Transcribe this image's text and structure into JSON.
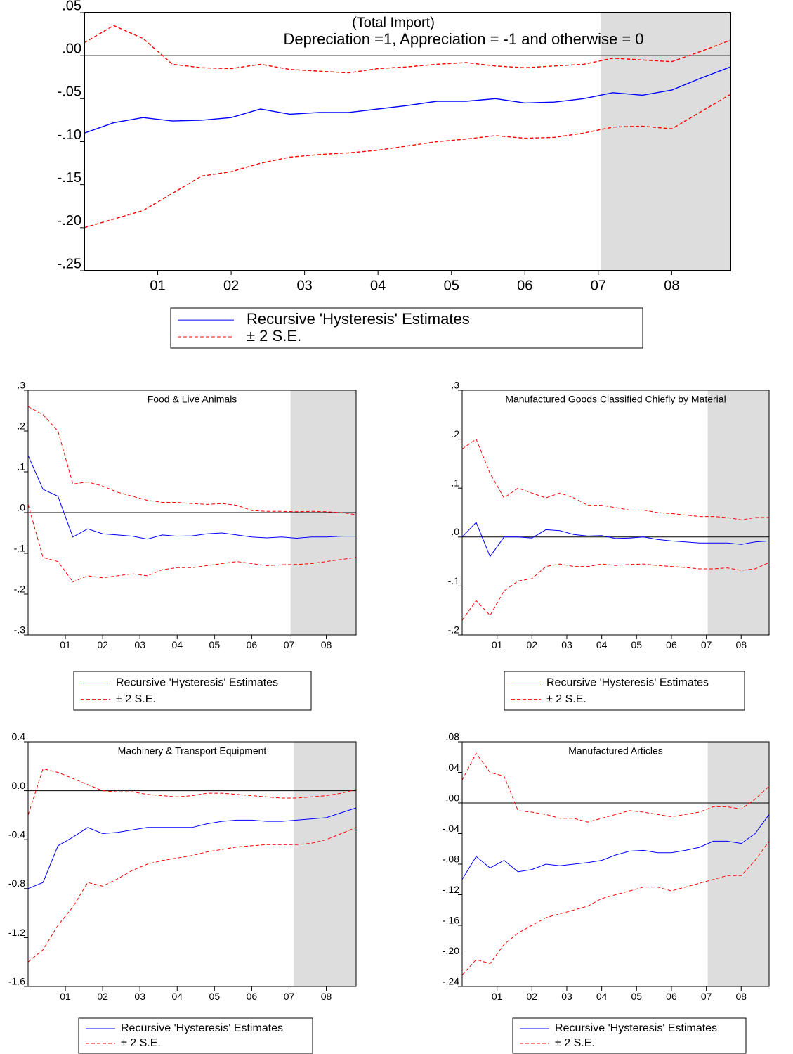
{
  "chart_data": [
    {
      "type": "line",
      "title": "(Total Import)",
      "subtitle": "Depreciation =1, Appreciation = -1 and otherwise = 0",
      "x": [
        2000.5,
        2000.9,
        2001.3,
        2001.7,
        2002.1,
        2002.5,
        2002.9,
        2003.3,
        2003.7,
        2004.1,
        2004.5,
        2004.9,
        2005.3,
        2005.7,
        2006.1,
        2006.5,
        2006.9,
        2007.3,
        2007.7,
        2008.1,
        2008.5,
        2008.9,
        2009.3
      ],
      "xlim": [
        2000.5,
        2009.3
      ],
      "xticks": [
        {
          "value": 2001.5,
          "label": "01"
        },
        {
          "value": 2002.5,
          "label": "02"
        },
        {
          "value": 2003.5,
          "label": "03"
        },
        {
          "value": 2004.5,
          "label": "04"
        },
        {
          "value": 2005.5,
          "label": "05"
        },
        {
          "value": 2006.5,
          "label": "06"
        },
        {
          "value": 2007.5,
          "label": "07"
        },
        {
          "value": 2008.5,
          "label": "08"
        }
      ],
      "ylim": [
        -0.25,
        0.05
      ],
      "yticks": [
        {
          "value": 0.05,
          "label": ".05"
        },
        {
          "value": 0,
          "label": ".00"
        },
        {
          "value": -0.05,
          "label": "-.05"
        },
        {
          "value": -0.1,
          "label": "-.10"
        },
        {
          "value": -0.15,
          "label": "-.15"
        },
        {
          "value": -0.2,
          "label": "-.20"
        },
        {
          "value": -0.25,
          "label": "-.25"
        }
      ],
      "shaded_region": [
        2007.53,
        2009.3
      ],
      "series": [
        {
          "name": "Recursive 'Hysteresis' Estimates",
          "color": "#0000ff",
          "values": [
            -0.09,
            -0.078,
            -0.072,
            -0.076,
            -0.075,
            -0.072,
            -0.062,
            -0.068,
            -0.066,
            -0.066,
            -0.062,
            -0.058,
            -0.053,
            -0.053,
            -0.05,
            -0.055,
            -0.054,
            -0.05,
            -0.043,
            -0.046,
            -0.04,
            -0.026,
            -0.013
          ]
        },
        {
          "name": "± 2 S.E.",
          "color": "#ff0000",
          "upper": [
            0.015,
            0.035,
            0.02,
            -0.01,
            -0.014,
            -0.015,
            -0.01,
            -0.016,
            -0.018,
            -0.02,
            -0.015,
            -0.013,
            -0.01,
            -0.008,
            -0.012,
            -0.014,
            -0.012,
            -0.01,
            -0.003,
            -0.005,
            -0.007,
            0.005,
            0.018
          ],
          "lower": [
            -0.2,
            -0.19,
            -0.18,
            -0.16,
            -0.14,
            -0.135,
            -0.125,
            -0.118,
            -0.115,
            -0.113,
            -0.11,
            -0.105,
            -0.1,
            -0.097,
            -0.093,
            -0.096,
            -0.095,
            -0.09,
            -0.083,
            -0.082,
            -0.085,
            -0.065,
            -0.045
          ]
        }
      ]
    },
    {
      "type": "line",
      "title": "Food & Live Animals",
      "x": [
        2000.5,
        2000.9,
        2001.3,
        2001.7,
        2002.1,
        2002.5,
        2002.9,
        2003.3,
        2003.7,
        2004.1,
        2004.5,
        2004.9,
        2005.3,
        2005.7,
        2006.1,
        2006.5,
        2006.9,
        2007.3,
        2007.7,
        2008.1,
        2008.5,
        2008.9,
        2009.3
      ],
      "xlim": [
        2000.5,
        2009.3
      ],
      "xticks": [
        {
          "value": 2001.5,
          "label": "01"
        },
        {
          "value": 2002.5,
          "label": "02"
        },
        {
          "value": 2003.5,
          "label": "03"
        },
        {
          "value": 2004.5,
          "label": "04"
        },
        {
          "value": 2005.5,
          "label": "05"
        },
        {
          "value": 2006.5,
          "label": "06"
        },
        {
          "value": 2007.5,
          "label": "07"
        },
        {
          "value": 2008.5,
          "label": "08"
        }
      ],
      "ylim": [
        -0.3,
        0.3
      ],
      "yticks": [
        {
          "value": 0.3,
          "label": ".3"
        },
        {
          "value": 0.2,
          "label": ".2"
        },
        {
          "value": 0.1,
          "label": ".1"
        },
        {
          "value": 0,
          "label": ".0"
        },
        {
          "value": -0.1,
          "label": "-.1"
        },
        {
          "value": -0.2,
          "label": "-.2"
        },
        {
          "value": -0.3,
          "label": "-.3"
        }
      ],
      "shaded_region": [
        2007.54,
        2009.3
      ],
      "series": [
        {
          "name": "Recursive 'Hysteresis' Estimates",
          "color": "#0000ff",
          "values": [
            0.14,
            0.057,
            0.04,
            -0.06,
            -0.04,
            -0.052,
            -0.055,
            -0.058,
            -0.065,
            -0.055,
            -0.058,
            -0.057,
            -0.052,
            -0.05,
            -0.055,
            -0.06,
            -0.062,
            -0.06,
            -0.063,
            -0.06,
            -0.06,
            -0.058,
            -0.058
          ]
        },
        {
          "name": "± 2 S.E.",
          "color": "#ff0000",
          "upper": [
            0.26,
            0.24,
            0.2,
            0.07,
            0.075,
            0.065,
            0.05,
            0.04,
            0.03,
            0.025,
            0.025,
            0.022,
            0.02,
            0.022,
            0.018,
            0.005,
            0.003,
            0.003,
            0.002,
            0.003,
            0.002,
            0,
            -0.005
          ],
          "lower": [
            0.02,
            -0.11,
            -0.12,
            -0.17,
            -0.155,
            -0.16,
            -0.155,
            -0.15,
            -0.155,
            -0.14,
            -0.135,
            -0.135,
            -0.13,
            -0.125,
            -0.12,
            -0.125,
            -0.13,
            -0.128,
            -0.127,
            -0.125,
            -0.12,
            -0.115,
            -0.11
          ]
        }
      ]
    },
    {
      "type": "line",
      "title": "Manufactured Goods Classified Chiefly by Material",
      "x": [
        2000.5,
        2000.9,
        2001.3,
        2001.7,
        2002.1,
        2002.5,
        2002.9,
        2003.3,
        2003.7,
        2004.1,
        2004.5,
        2004.9,
        2005.3,
        2005.7,
        2006.1,
        2006.5,
        2006.9,
        2007.3,
        2007.7,
        2008.1,
        2008.5,
        2008.9,
        2009.3
      ],
      "xlim": [
        2000.5,
        2009.3
      ],
      "xticks": [
        {
          "value": 2001.5,
          "label": "01"
        },
        {
          "value": 2002.5,
          "label": "02"
        },
        {
          "value": 2003.5,
          "label": "03"
        },
        {
          "value": 2004.5,
          "label": "04"
        },
        {
          "value": 2005.5,
          "label": "05"
        },
        {
          "value": 2006.5,
          "label": "06"
        },
        {
          "value": 2007.5,
          "label": "07"
        },
        {
          "value": 2008.5,
          "label": "08"
        }
      ],
      "ylim": [
        -0.2,
        0.3
      ],
      "yticks": [
        {
          "value": 0.3,
          "label": ".3"
        },
        {
          "value": 0.2,
          "label": ".2"
        },
        {
          "value": 0.1,
          "label": ".1"
        },
        {
          "value": 0,
          "label": ".0"
        },
        {
          "value": -0.1,
          "label": "-.1"
        },
        {
          "value": -0.2,
          "label": "-.2"
        }
      ],
      "shaded_region": [
        2007.54,
        2009.3
      ],
      "series": [
        {
          "name": "Recursive 'Hysteresis' Estimates",
          "color": "#0000ff",
          "values": [
            0,
            0.03,
            -0.04,
            0,
            0,
            -0.002,
            0.015,
            0.013,
            0.005,
            0.002,
            0.003,
            -0.003,
            -0.002,
            0,
            -0.005,
            -0.008,
            -0.01,
            -0.012,
            -0.012,
            -0.012,
            -0.015,
            -0.01,
            -0.008
          ]
        },
        {
          "name": "± 2 S.E.",
          "color": "#ff0000",
          "upper": [
            0.18,
            0.2,
            0.13,
            0.08,
            0.1,
            0.09,
            0.08,
            0.09,
            0.08,
            0.065,
            0.065,
            0.06,
            0.055,
            0.055,
            0.05,
            0.048,
            0.045,
            0.042,
            0.042,
            0.04,
            0.035,
            0.04,
            0.04
          ],
          "lower": [
            -0.17,
            -0.13,
            -0.16,
            -0.11,
            -0.09,
            -0.085,
            -0.06,
            -0.055,
            -0.06,
            -0.06,
            -0.055,
            -0.058,
            -0.056,
            -0.055,
            -0.058,
            -0.06,
            -0.062,
            -0.065,
            -0.065,
            -0.063,
            -0.068,
            -0.065,
            -0.052
          ]
        }
      ]
    },
    {
      "type": "line",
      "title": "Machinery & Transport Equipment",
      "x": [
        2000.5,
        2000.9,
        2001.3,
        2001.7,
        2002.1,
        2002.5,
        2002.9,
        2003.3,
        2003.7,
        2004.1,
        2004.5,
        2004.9,
        2005.3,
        2005.7,
        2006.1,
        2006.5,
        2006.9,
        2007.3,
        2007.7,
        2008.1,
        2008.5,
        2008.9,
        2009.3
      ],
      "xlim": [
        2000.5,
        2009.3
      ],
      "xticks": [
        {
          "value": 2001.5,
          "label": "01"
        },
        {
          "value": 2002.5,
          "label": "02"
        },
        {
          "value": 2003.5,
          "label": "03"
        },
        {
          "value": 2004.5,
          "label": "04"
        },
        {
          "value": 2005.5,
          "label": "05"
        },
        {
          "value": 2006.5,
          "label": "06"
        },
        {
          "value": 2007.5,
          "label": "07"
        },
        {
          "value": 2008.5,
          "label": "08"
        }
      ],
      "ylim": [
        -1.6,
        0.4
      ],
      "yticks": [
        0.4,
        {
          "value": 0,
          "label": "0.0"
        },
        -0.4,
        -0.8,
        -1.2,
        -1.6
      ],
      "shaded_region": [
        2007.63,
        2009.3
      ],
      "series": [
        {
          "name": "Recursive 'Hysteresis' Estimates",
          "color": "#0000ff",
          "values": [
            -0.8,
            -0.75,
            -0.45,
            -0.38,
            -0.3,
            -0.35,
            -0.34,
            -0.32,
            -0.3,
            -0.3,
            -0.3,
            -0.3,
            -0.27,
            -0.25,
            -0.24,
            -0.24,
            -0.25,
            -0.25,
            -0.24,
            -0.23,
            -0.22,
            -0.18,
            -0.14
          ]
        },
        {
          "name": "± 2 S.E.",
          "color": "#ff0000",
          "upper": [
            -0.2,
            0.18,
            0.15,
            0.1,
            0.05,
            0,
            -0.01,
            -0.01,
            -0.03,
            -0.04,
            -0.05,
            -0.04,
            -0.02,
            -0.02,
            -0.03,
            -0.04,
            -0.05,
            -0.06,
            -0.06,
            -0.05,
            -0.04,
            -0.02,
            0.01
          ],
          "lower": [
            -1.4,
            -1.3,
            -1.1,
            -0.95,
            -0.75,
            -0.78,
            -0.72,
            -0.65,
            -0.6,
            -0.57,
            -0.55,
            -0.53,
            -0.5,
            -0.48,
            -0.46,
            -0.45,
            -0.44,
            -0.44,
            -0.44,
            -0.43,
            -0.4,
            -0.35,
            -0.3
          ]
        }
      ]
    },
    {
      "type": "line",
      "title": "Manufactured Articles",
      "x": [
        2000.5,
        2000.9,
        2001.3,
        2001.7,
        2002.1,
        2002.5,
        2002.9,
        2003.3,
        2003.7,
        2004.1,
        2004.5,
        2004.9,
        2005.3,
        2005.7,
        2006.1,
        2006.5,
        2006.9,
        2007.3,
        2007.7,
        2008.1,
        2008.5,
        2008.9,
        2009.3
      ],
      "xlim": [
        2000.5,
        2009.3
      ],
      "xticks": [
        {
          "value": 2001.5,
          "label": "01"
        },
        {
          "value": 2002.5,
          "label": "02"
        },
        {
          "value": 2003.5,
          "label": "03"
        },
        {
          "value": 2004.5,
          "label": "04"
        },
        {
          "value": 2005.5,
          "label": "05"
        },
        {
          "value": 2006.5,
          "label": "06"
        },
        {
          "value": 2007.5,
          "label": "07"
        },
        {
          "value": 2008.5,
          "label": "08"
        }
      ],
      "ylim": [
        -0.24,
        0.08
      ],
      "yticks": [
        {
          "value": 0.08,
          "label": ".08"
        },
        {
          "value": 0.04,
          "label": ".04"
        },
        {
          "value": 0,
          "label": ".00"
        },
        {
          "value": -0.04,
          "label": "-.04"
        },
        {
          "value": -0.08,
          "label": "-.08"
        },
        {
          "value": -0.12,
          "label": "-.12"
        },
        {
          "value": -0.16,
          "label": "-.16"
        },
        {
          "value": -0.2,
          "label": "-.20"
        },
        {
          "value": -0.24,
          "label": "-.24"
        }
      ],
      "shaded_region": [
        2007.54,
        2009.3
      ],
      "series": [
        {
          "name": "Recursive 'Hysteresis' Estimates",
          "color": "#0000ff",
          "values": [
            -0.1,
            -0.07,
            -0.085,
            -0.075,
            -0.09,
            -0.087,
            -0.08,
            -0.082,
            -0.08,
            -0.078,
            -0.075,
            -0.068,
            -0.063,
            -0.062,
            -0.065,
            -0.065,
            -0.062,
            -0.058,
            -0.05,
            -0.05,
            -0.053,
            -0.04,
            -0.015
          ]
        },
        {
          "name": "± 2 S.E.",
          "color": "#ff0000",
          "upper": [
            0.03,
            0.065,
            0.04,
            0.035,
            -0.01,
            -0.012,
            -0.015,
            -0.02,
            -0.02,
            -0.025,
            -0.02,
            -0.015,
            -0.01,
            -0.012,
            -0.015,
            -0.018,
            -0.015,
            -0.012,
            -0.005,
            -0.005,
            -0.008,
            0.005,
            0.022
          ],
          "lower": [
            -0.225,
            -0.205,
            -0.21,
            -0.185,
            -0.17,
            -0.16,
            -0.15,
            -0.145,
            -0.14,
            -0.135,
            -0.125,
            -0.12,
            -0.115,
            -0.11,
            -0.11,
            -0.115,
            -0.11,
            -0.105,
            -0.1,
            -0.095,
            -0.095,
            -0.075,
            -0.05
          ]
        }
      ]
    }
  ]
}
